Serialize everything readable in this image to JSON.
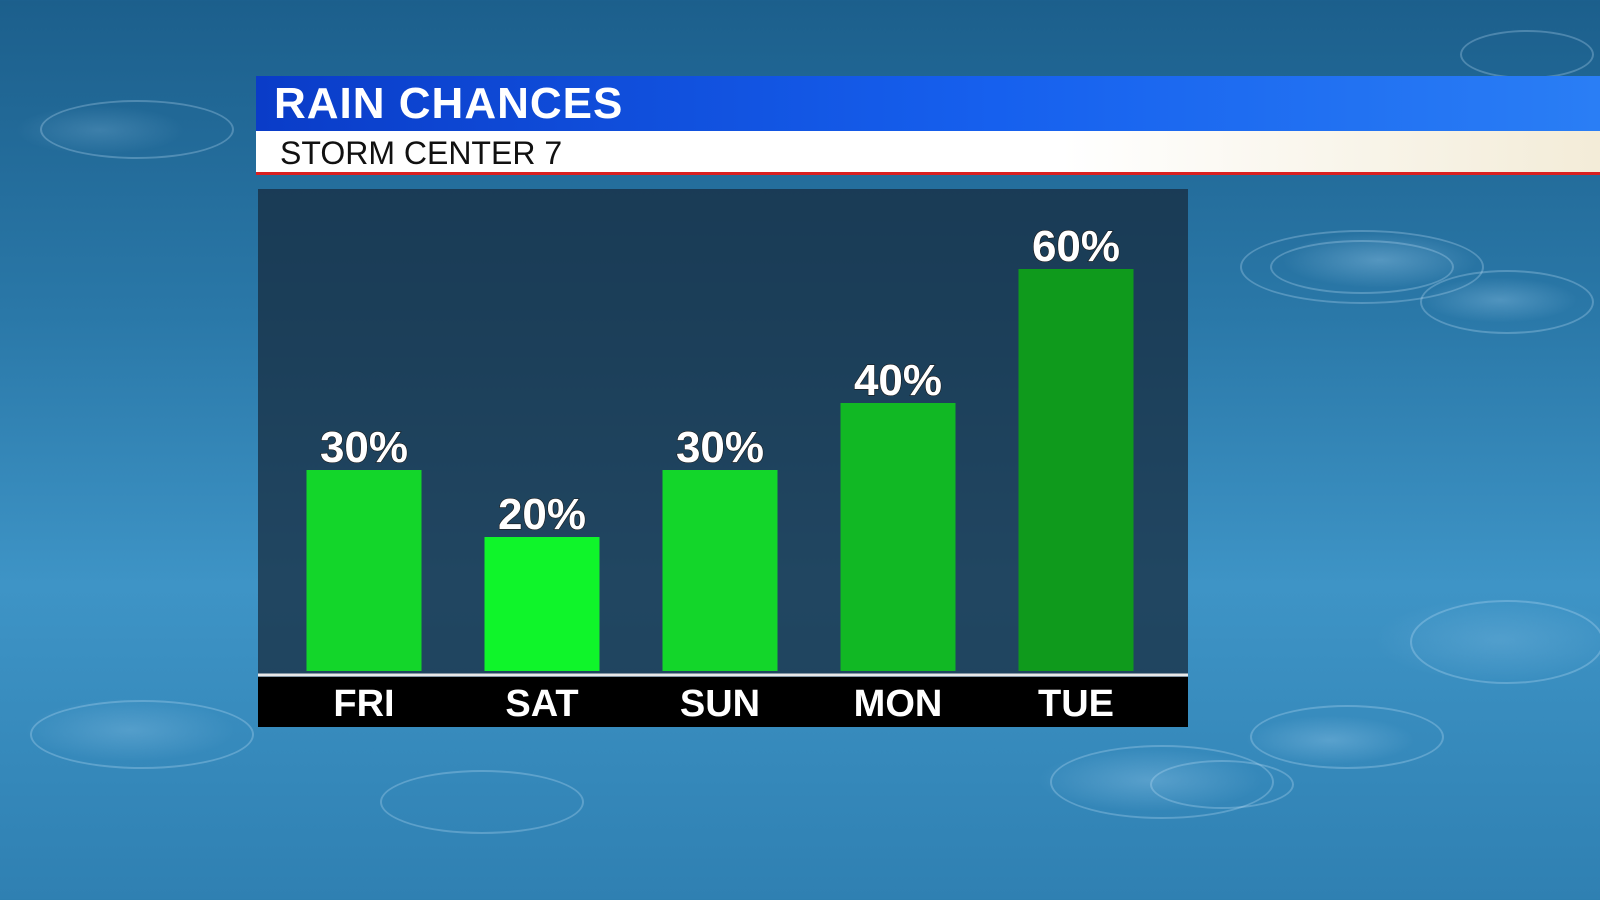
{
  "banner": {
    "title": "RAIN CHANCES",
    "subtitle": "STORM CENTER 7"
  },
  "colors": {
    "banner_blue": "#0a3cc8",
    "bar_green": "#13d62a",
    "bar_green_bright": "#0ff52a",
    "bar_green_dark": "#0f9a1c",
    "axis_band": "#000000",
    "accent_red": "#d92020"
  },
  "chart_data": {
    "type": "bar",
    "categories": [
      "FRI",
      "SAT",
      "SUN",
      "MON",
      "TUE"
    ],
    "values": [
      30,
      20,
      30,
      40,
      60
    ],
    "labels": [
      "30%",
      "20%",
      "30%",
      "40%",
      "60%"
    ],
    "unit": "%",
    "title": "RAIN CHANCES",
    "ylim": [
      0,
      100
    ],
    "grid": false,
    "legend": "none"
  }
}
